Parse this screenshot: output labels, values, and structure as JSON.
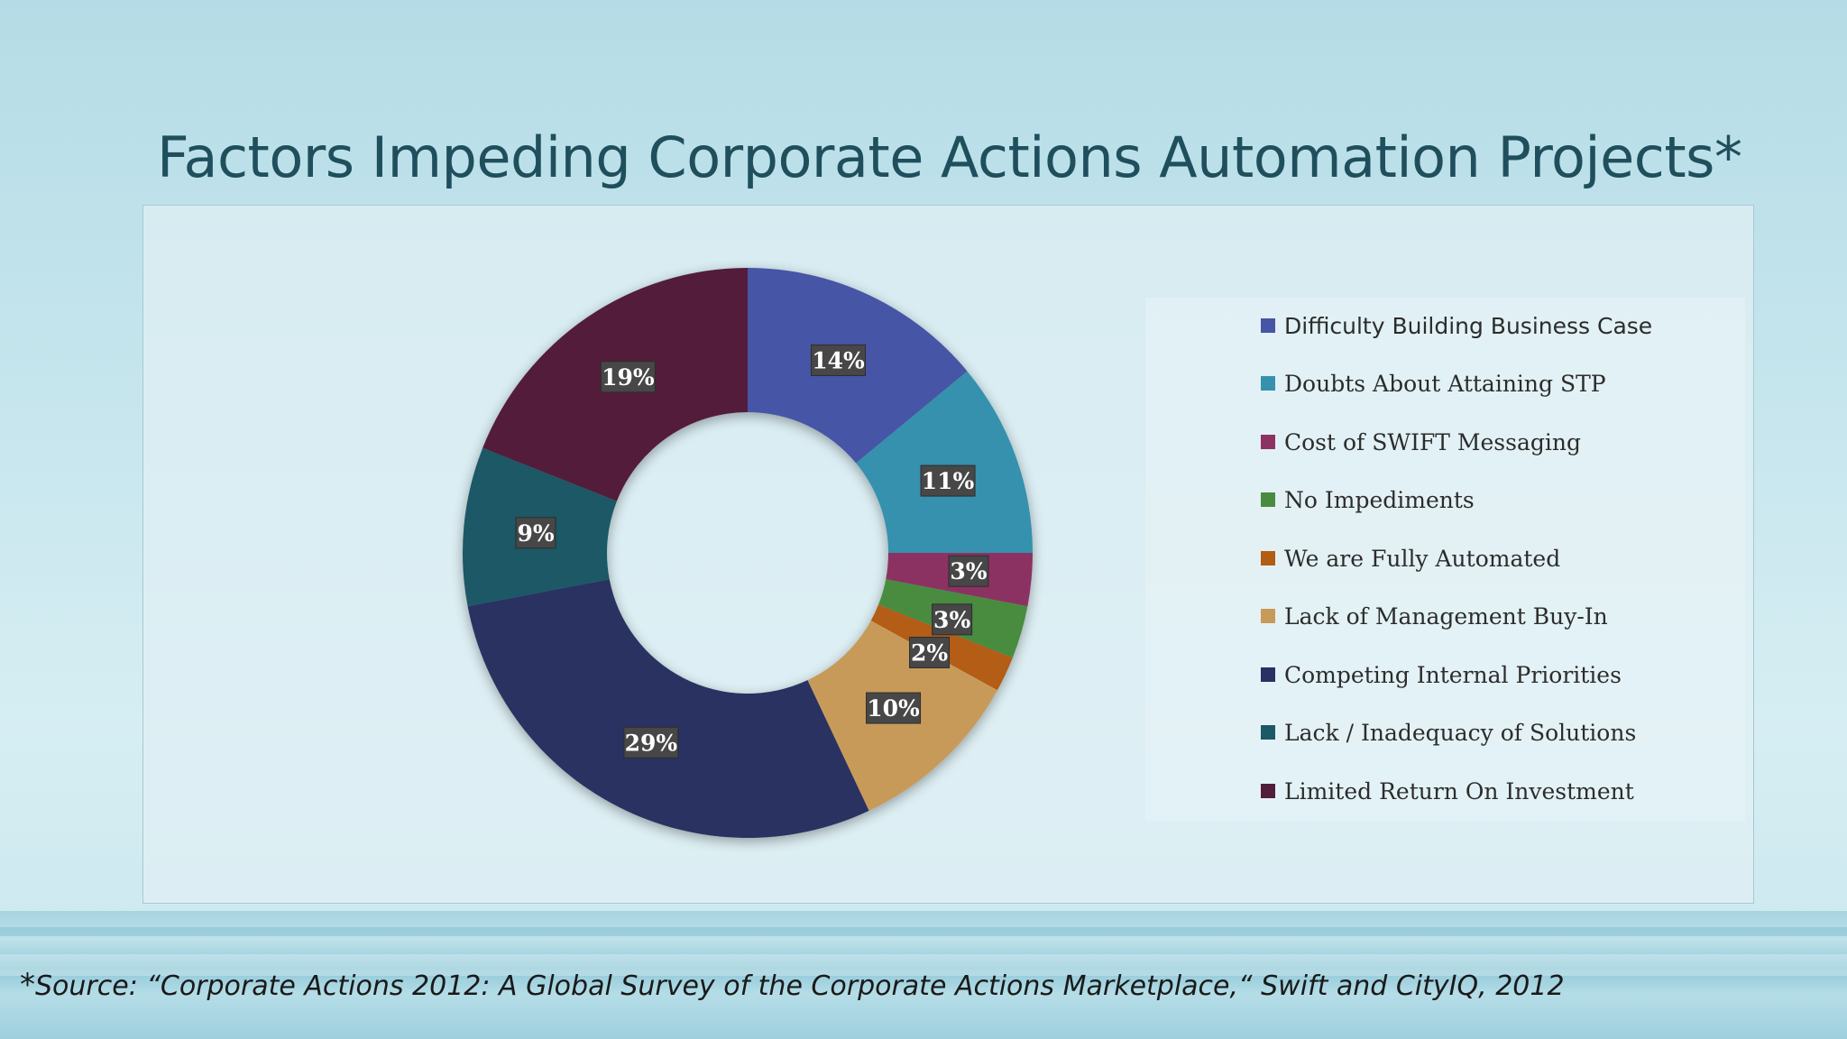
{
  "slide": {
    "title": "Factors Impeding Corporate Actions Automation Projects*",
    "source_mark": "*",
    "source_text": "Source: “Corporate Actions 2012: A Global Survey of the Corporate Actions Marketplace,“ Swift and CityIQ, 2012"
  },
  "chart_data": {
    "type": "pie",
    "variant": "donut",
    "title": "",
    "legend_position": "right",
    "series": [
      {
        "label": "Difficulty Building Business Case",
        "value": 14,
        "display": "14%",
        "color": "#4655a6"
      },
      {
        "label": "Doubts About Attaining STP",
        "value": 11,
        "display": "11%",
        "color": "#3591ad"
      },
      {
        "label": "Cost of SWIFT Messaging",
        "value": 3,
        "display": "3%",
        "color": "#8c3363"
      },
      {
        "label": "No Impediments",
        "value": 3,
        "display": "3%",
        "color": "#4a8c3f"
      },
      {
        "label": "We are Fully Automated",
        "value": 2,
        "display": "2%",
        "color": "#b35d13"
      },
      {
        "label": "Lack of Management Buy-In",
        "value": 10,
        "display": "10%",
        "color": "#c89a5a"
      },
      {
        "label": "Competing Internal Priorities",
        "value": 29,
        "display": "29%",
        "color": "#293062"
      },
      {
        "label": "Lack / Inadequacy of Solutions",
        "value": 9,
        "display": "9%",
        "color": "#1c5866"
      },
      {
        "label": "Limited Return On Investment",
        "value": 19,
        "display": "19%",
        "color": "#521d3a"
      }
    ]
  }
}
